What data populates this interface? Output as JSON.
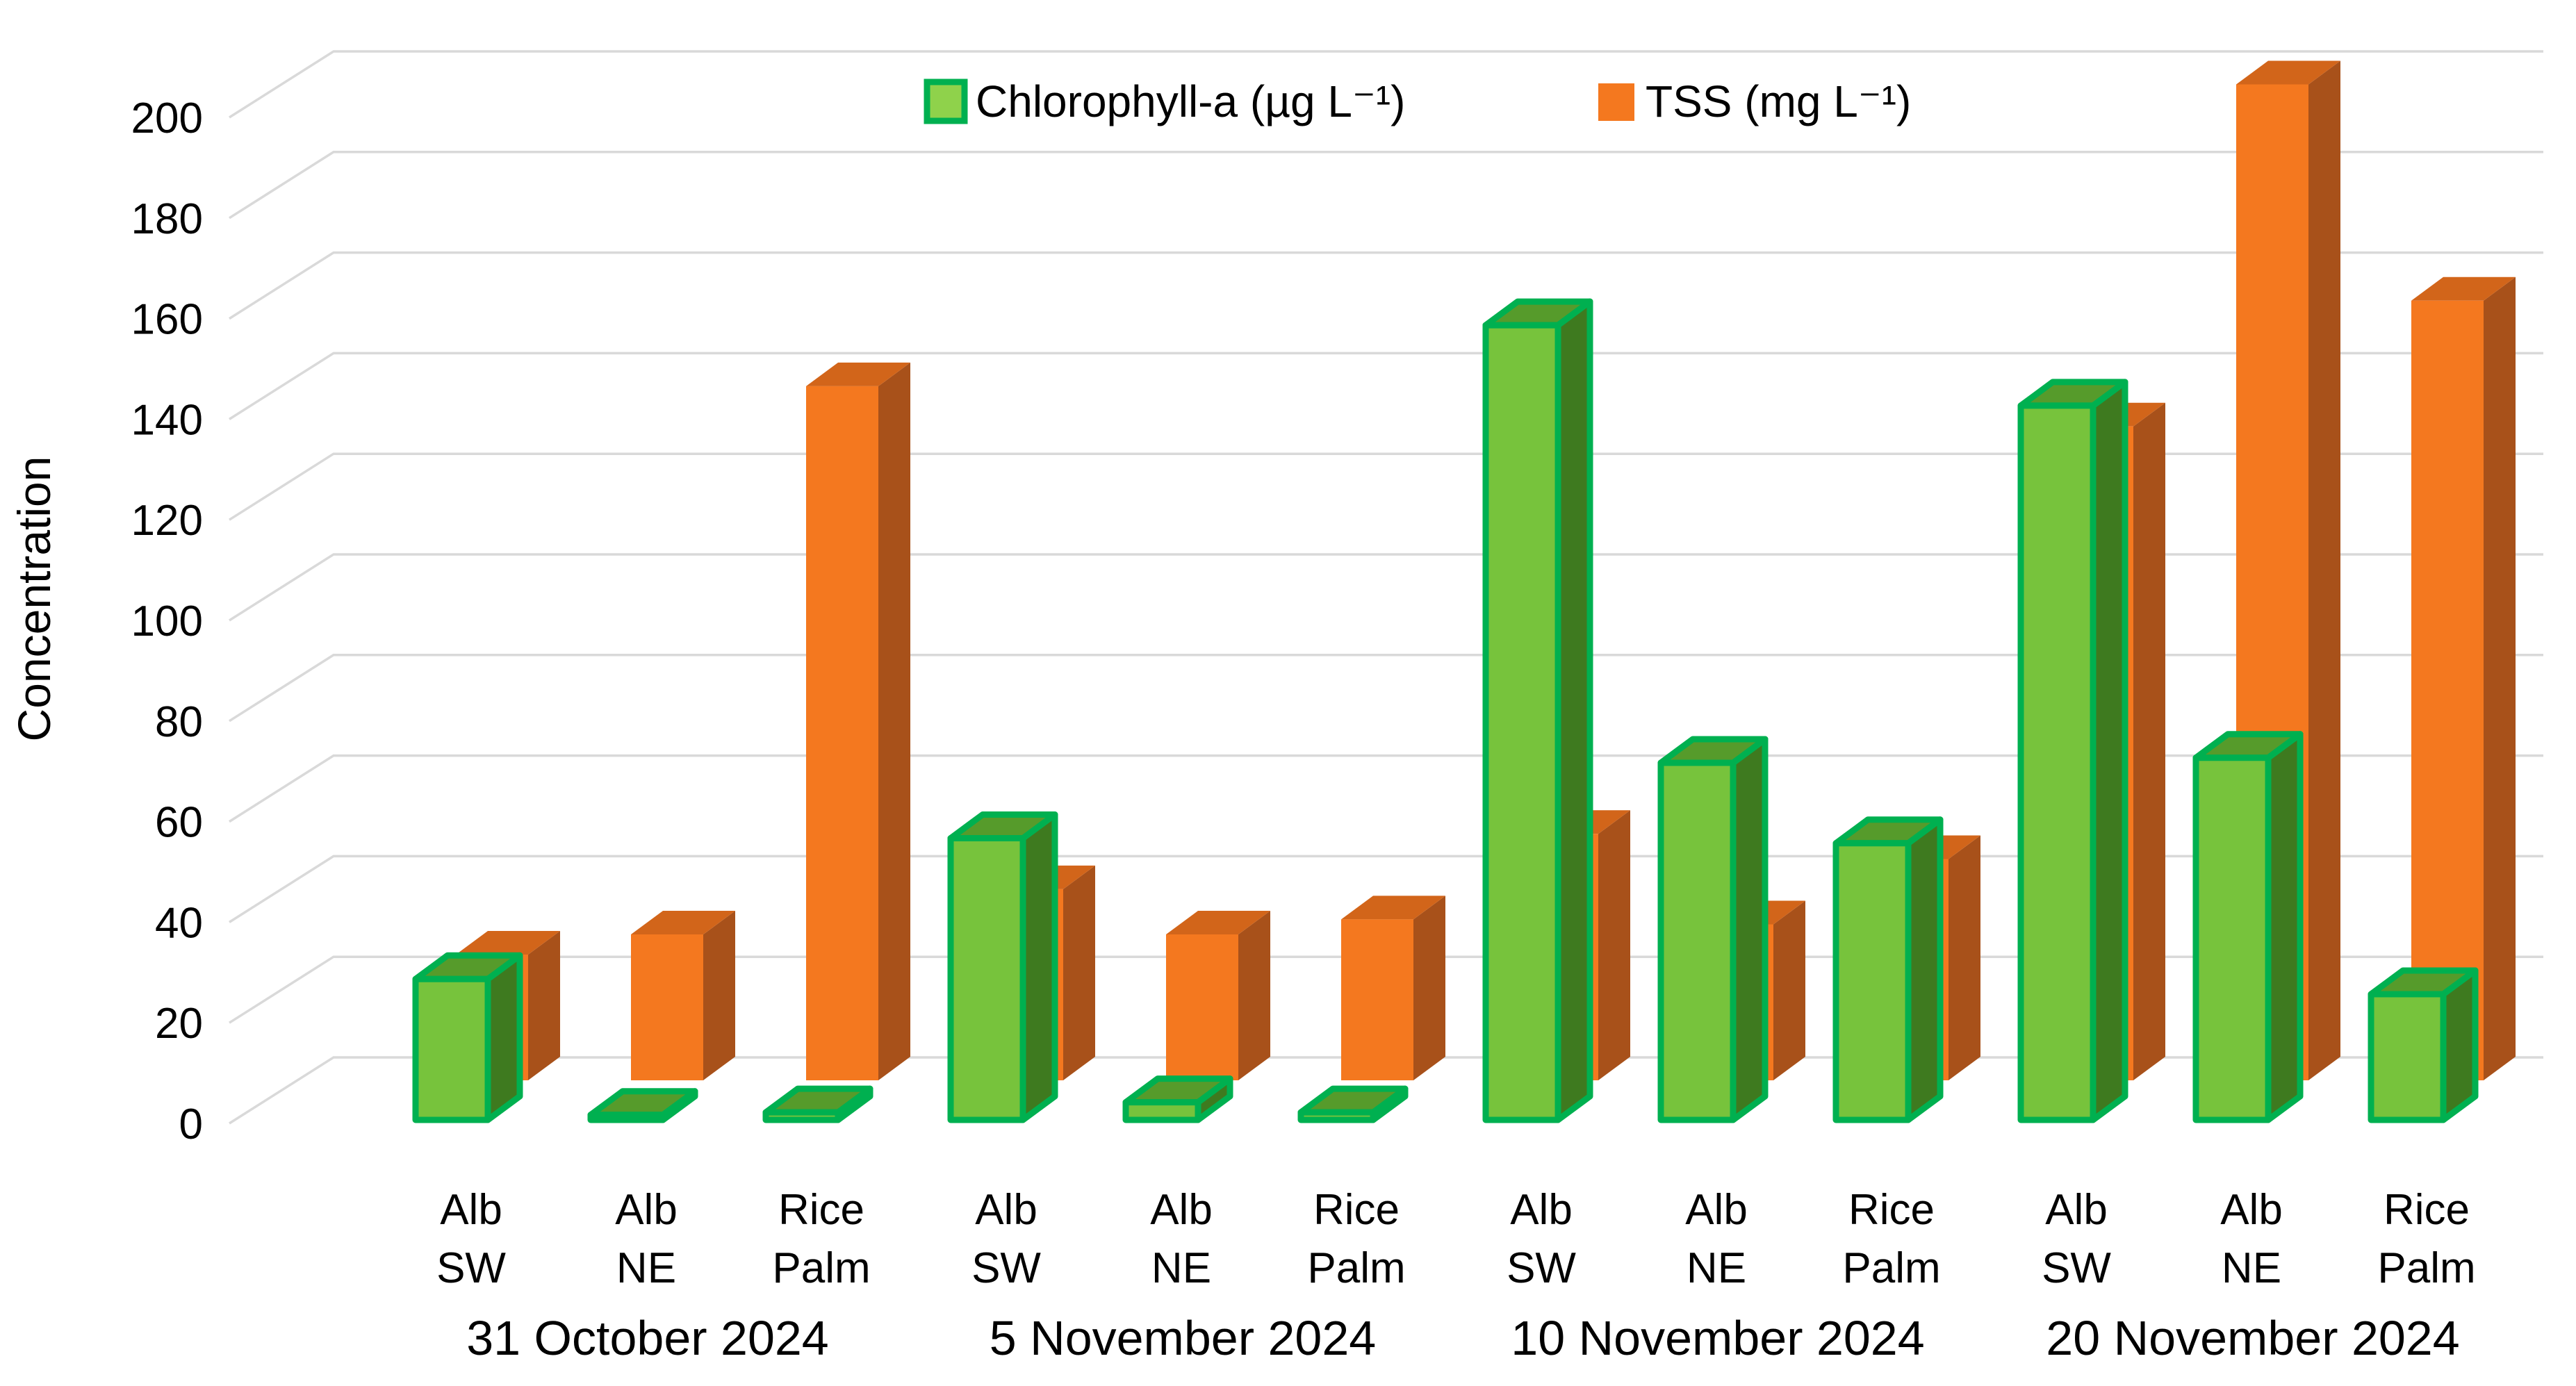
{
  "chart_data": {
    "type": "bar",
    "style": "3d-clustered-column",
    "title": "",
    "xlabel": "",
    "ylabel": "Concentration",
    "ylim": [
      0,
      200
    ],
    "ytick_step": 20,
    "ytick_labels": [
      "0",
      "20",
      "40",
      "60",
      "80",
      "100",
      "120",
      "140",
      "160",
      "180",
      "200"
    ],
    "grid": true,
    "legend_position": "top-center",
    "series": [
      {
        "name": "Chlorophyll-a",
        "label": "Chlorophyll-a (µg L⁻¹)",
        "unit": "µg L⁻¹",
        "color_front": "#77C33C",
        "color_top": "#569B2B",
        "color_side": "#3E7A1F",
        "outline": "#00B050",
        "legend_fill": "#8FD24B"
      },
      {
        "name": "TSS",
        "label": "TSS (mg L⁻¹)",
        "unit": "mg L⁻¹",
        "color_front": "#F4781F",
        "color_top": "#D2651A",
        "color_side": "#A8511A",
        "outline": "none",
        "legend_fill": "#F4781F"
      }
    ],
    "groups": [
      {
        "date": "31 October 2024",
        "sites": [
          {
            "site": "Alb SW",
            "site_lines": [
              "Alb",
              "SW"
            ],
            "chlorophyll_a": 28,
            "tss": 25
          },
          {
            "site": "Alb NE",
            "site_lines": [
              "Alb",
              "NE"
            ],
            "chlorophyll_a": 1,
            "tss": 29
          },
          {
            "site": "Rice Palm",
            "site_lines": [
              "Rice",
              "Palm"
            ],
            "chlorophyll_a": 1.5,
            "tss": 138
          }
        ]
      },
      {
        "date": "5 November 2024",
        "sites": [
          {
            "site": "Alb SW",
            "site_lines": [
              "Alb",
              "SW"
            ],
            "chlorophyll_a": 56,
            "tss": 38
          },
          {
            "site": "Alb NE",
            "site_lines": [
              "Alb",
              "NE"
            ],
            "chlorophyll_a": 3.5,
            "tss": 29
          },
          {
            "site": "Rice Palm",
            "site_lines": [
              "Rice",
              "Palm"
            ],
            "chlorophyll_a": 1.5,
            "tss": 32
          }
        ]
      },
      {
        "date": "10 November 2024",
        "sites": [
          {
            "site": "Alb SW",
            "site_lines": [
              "Alb",
              "SW"
            ],
            "chlorophyll_a": 158,
            "tss": 49
          },
          {
            "site": "Alb NE",
            "site_lines": [
              "Alb",
              "NE"
            ],
            "chlorophyll_a": 71,
            "tss": 31
          },
          {
            "site": "Rice Palm",
            "site_lines": [
              "Rice",
              "Palm"
            ],
            "chlorophyll_a": 55,
            "tss": 44
          }
        ]
      },
      {
        "date": "20 November 2024",
        "sites": [
          {
            "site": "Alb SW",
            "site_lines": [
              "Alb",
              "SW"
            ],
            "chlorophyll_a": 142,
            "tss": 130
          },
          {
            "site": "Alb NE",
            "site_lines": [
              "Alb",
              "NE"
            ],
            "chlorophyll_a": 72,
            "tss": 198
          },
          {
            "site": "Rice Palm",
            "site_lines": [
              "Rice",
              "Palm"
            ],
            "chlorophyll_a": 25,
            "tss": 155
          }
        ]
      }
    ]
  },
  "colors": {
    "background": "#FFFFFF",
    "gridline": "#D9D9D9",
    "text": "#000000",
    "chlorophyll_green": "#77C33C",
    "chlorophyll_outline": "#00B050",
    "tss_orange": "#F4781F"
  }
}
